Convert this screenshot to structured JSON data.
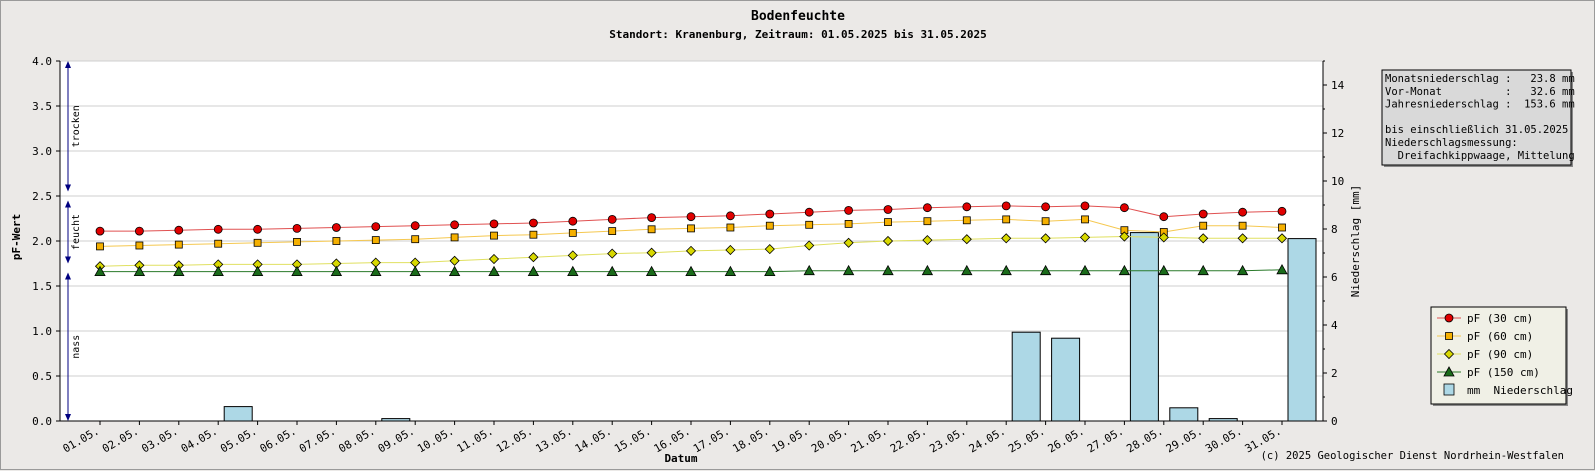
{
  "chart_data": {
    "type": "line",
    "title": "Bodenfeuchte",
    "subtitle": "Standort: Kranenburg, Zeitraum: 01.05.2025 bis 31.05.2025",
    "xlabel": "Datum",
    "ylabel": "pF-Wert",
    "y2label": "Niederschlag [mm]",
    "ylim": [
      0,
      4.0
    ],
    "y2lim": [
      0,
      15
    ],
    "yticks": [
      "0.0",
      "0.5",
      "1.0",
      "1.5",
      "2.0",
      "2.5",
      "3.0",
      "3.5",
      "4.0"
    ],
    "y2ticks": [
      "0",
      "2",
      "4",
      "6",
      "8",
      "10",
      "12",
      "14"
    ],
    "grid": true,
    "categories": [
      "01.05.",
      "02.05.",
      "03.05.",
      "04.05.",
      "05.05.",
      "06.05.",
      "07.05.",
      "08.05.",
      "09.05.",
      "10.05.",
      "11.05.",
      "12.05.",
      "13.05.",
      "14.05.",
      "15.05.",
      "16.05.",
      "17.05.",
      "18.05.",
      "19.05.",
      "20.05.",
      "21.05.",
      "22.05.",
      "23.05.",
      "24.05.",
      "25.05.",
      "26.05.",
      "27.05.",
      "28.05.",
      "29.05.",
      "30.05.",
      "31.05."
    ],
    "series": [
      {
        "name": "pF (30 cm)",
        "color": "#e00000",
        "line_color": "#e05050",
        "marker": "circle",
        "values": [
          2.11,
          2.11,
          2.12,
          2.13,
          2.13,
          2.14,
          2.15,
          2.16,
          2.17,
          2.18,
          2.19,
          2.2,
          2.22,
          2.24,
          2.26,
          2.27,
          2.28,
          2.3,
          2.32,
          2.34,
          2.35,
          2.37,
          2.38,
          2.39,
          2.38,
          2.39,
          2.37,
          2.27,
          2.3,
          2.32,
          2.33
        ]
      },
      {
        "name": "pF (60 cm)",
        "color": "#f5b000",
        "line_color": "#f5c850",
        "marker": "square",
        "values": [
          1.94,
          1.95,
          1.96,
          1.97,
          1.98,
          1.99,
          2.0,
          2.01,
          2.02,
          2.04,
          2.06,
          2.07,
          2.09,
          2.11,
          2.13,
          2.14,
          2.15,
          2.17,
          2.18,
          2.19,
          2.21,
          2.22,
          2.23,
          2.24,
          2.22,
          2.24,
          2.12,
          2.1,
          2.17,
          2.17,
          2.15
        ]
      },
      {
        "name": "pF (90 cm)",
        "color": "#d8d800",
        "line_color": "#e0e060",
        "marker": "diamond",
        "values": [
          1.72,
          1.73,
          1.73,
          1.74,
          1.74,
          1.74,
          1.75,
          1.76,
          1.76,
          1.78,
          1.8,
          1.82,
          1.84,
          1.86,
          1.87,
          1.89,
          1.9,
          1.91,
          1.95,
          1.98,
          2.0,
          2.01,
          2.02,
          2.03,
          2.03,
          2.04,
          2.05,
          2.04,
          2.03,
          2.03,
          2.03
        ]
      },
      {
        "name": "pF (150 cm)",
        "color": "#1a6b1a",
        "line_color": "#2a7a2a",
        "marker": "triangle",
        "values": [
          1.66,
          1.66,
          1.66,
          1.66,
          1.66,
          1.66,
          1.66,
          1.66,
          1.66,
          1.66,
          1.66,
          1.66,
          1.66,
          1.66,
          1.66,
          1.66,
          1.66,
          1.66,
          1.67,
          1.67,
          1.67,
          1.67,
          1.67,
          1.67,
          1.67,
          1.67,
          1.67,
          1.67,
          1.67,
          1.67,
          1.68
        ]
      }
    ],
    "bars": {
      "name": "mm  Niederschlag",
      "color": "#add8e6",
      "axis": "right",
      "values": [
        0,
        0,
        0,
        0.6,
        0,
        0,
        0,
        0.1,
        0,
        0,
        0,
        0,
        0,
        0,
        0,
        0,
        0,
        0,
        0,
        0,
        0,
        0,
        0,
        3.7,
        3.45,
        0,
        7.85,
        0.55,
        0.1,
        0,
        7.6
      ]
    },
    "zones": [
      {
        "label": "trocken",
        "from": 2.55,
        "to": 4.0
      },
      {
        "label": "feucht",
        "from": 1.75,
        "to": 2.45
      },
      {
        "label": "nass",
        "from": 0.0,
        "to": 1.65
      }
    ],
    "legend_position": "bottom-right",
    "info_box": {
      "lines": [
        "Monatsniederschlag :   23.8 mm",
        "Vor-Monat          :   32.6 mm",
        "Jahresniederschlag :  153.6 mm",
        "",
        "bis einschließlich 31.05.2025",
        "Niederschlagsmessung:",
        "  Dreifachkippwaage, Mittelung"
      ]
    },
    "copyright": "(c) 2025 Geologischer Dienst Nordrhein-Westfalen"
  }
}
